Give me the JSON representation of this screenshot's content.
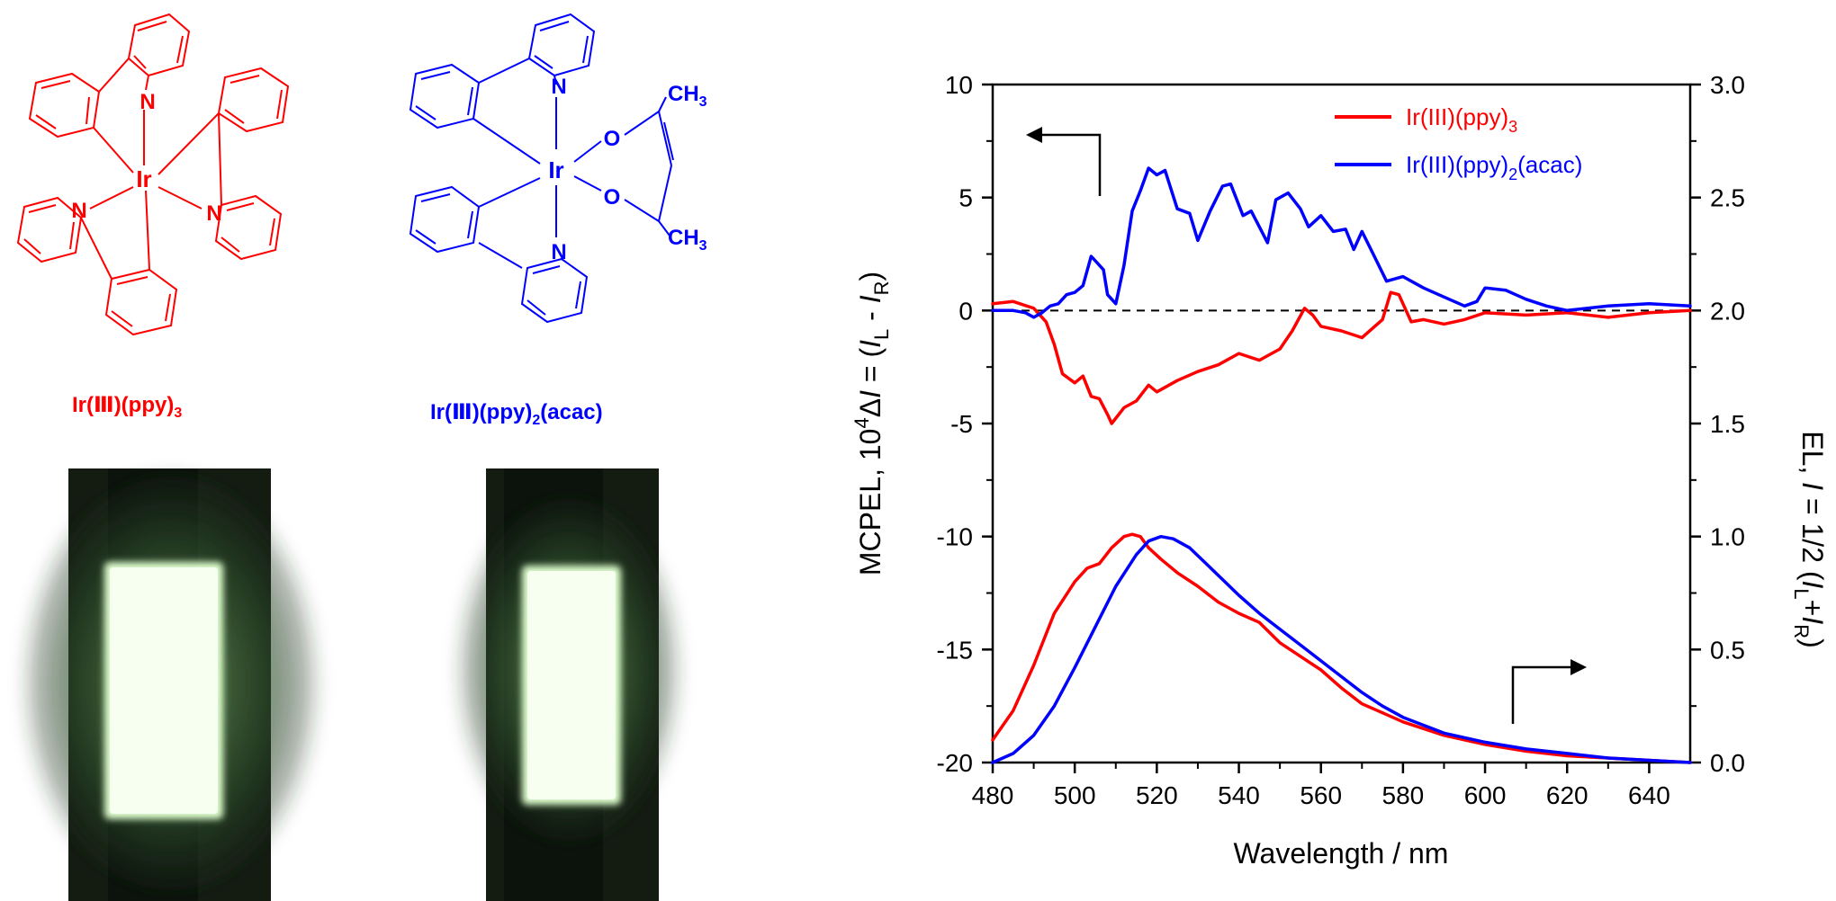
{
  "structures": {
    "complex1": {
      "caption": "Ir(Ⅲ)(ppy)",
      "caption_sub": "3",
      "color": "#ff0000",
      "atoms": {
        "metal": "Ir",
        "n1": "N",
        "n2": "N",
        "n3": "N"
      }
    },
    "complex2": {
      "caption": "Ir(Ⅲ)(ppy)",
      "caption_sub": "2",
      "caption_tail": "(acac)",
      "color": "#0000ff",
      "atoms": {
        "metal": "Ir",
        "n1": "N",
        "n2": "N",
        "o1": "O",
        "o2": "O",
        "ch3_top": "CH",
        "ch3_bottom": "CH",
        "ch3_sub": "3"
      }
    }
  },
  "photos": [
    {
      "name": "device-photo-ppy3",
      "glow": "#f6fff0"
    },
    {
      "name": "device-photo-ppy2acac",
      "glow": "#f6fff0"
    }
  ],
  "chart_data": {
    "type": "line",
    "xlabel": "Wavelength / nm",
    "ylabel_left": {
      "prefix": "MCPEL, 10",
      "sup": "4",
      "delta": "Δ",
      "I": "I",
      "eq": " = (",
      "IL": "I",
      "L": "L",
      "minus": " - ",
      "IR": "I",
      "R": "R",
      "close": ")"
    },
    "ylabel_right": {
      "prefix": "EL, ",
      "I": "I",
      "eq": " = 1/2 (",
      "IL": "I",
      "L": "L",
      "plus": "+",
      "IR": "I",
      "R": "R",
      "close": ")"
    },
    "xlim": [
      480,
      650
    ],
    "ylim_left": [
      -20,
      10
    ],
    "ylim_right": [
      0.0,
      3.0
    ],
    "xticks": [
      480,
      500,
      520,
      540,
      560,
      580,
      600,
      620,
      640
    ],
    "yticks_left": [
      -20,
      -15,
      -10,
      -5,
      0,
      5,
      10
    ],
    "yticks_left_labels": [
      "-20",
      "-15",
      "-10",
      "-5",
      "0",
      "5",
      "10"
    ],
    "yticks_right": [
      0.0,
      0.5,
      1.0,
      1.5,
      2.0,
      2.5,
      3.0
    ],
    "yticks_right_labels": [
      "0.0",
      "0.5",
      "1.0",
      "1.5",
      "2.0",
      "2.5",
      "3.0"
    ],
    "legend": {
      "position": "top-right",
      "entries": [
        {
          "text": "Ir(III)(ppy)",
          "sub": "3",
          "tail": "",
          "color": "#ff0000"
        },
        {
          "text": "Ir(III)(ppy)",
          "sub": "2",
          "tail": "(acac)",
          "color": "#0000ff"
        }
      ]
    },
    "zero_line": {
      "y": 0,
      "style": "dashed"
    },
    "series": [
      {
        "name": "Ir(III)(ppy)3",
        "axis": "left",
        "color": "#ff0000",
        "x": [
          480,
          485,
          490,
          493,
          495,
          497,
          500,
          502,
          504,
          506,
          508,
          509,
          512,
          515,
          518,
          520,
          525,
          530,
          535,
          540,
          545,
          550,
          553,
          556,
          558,
          560,
          565,
          570,
          575,
          577,
          579,
          582,
          585,
          590,
          595,
          600,
          610,
          620,
          630,
          640,
          650
        ],
        "y": [
          0.3,
          0.4,
          0.1,
          -0.5,
          -1.5,
          -2.8,
          -3.2,
          -2.9,
          -3.8,
          -3.9,
          -4.6,
          -5.0,
          -4.3,
          -4.0,
          -3.3,
          -3.6,
          -3.1,
          -2.7,
          -2.4,
          -1.9,
          -2.2,
          -1.7,
          -0.9,
          0.1,
          -0.2,
          -0.7,
          -0.9,
          -1.2,
          -0.4,
          0.8,
          0.7,
          -0.5,
          -0.4,
          -0.6,
          -0.4,
          -0.1,
          -0.2,
          -0.1,
          -0.3,
          -0.1,
          0.0
        ]
      },
      {
        "name": "Ir(III)(ppy)2(acac)",
        "axis": "left",
        "color": "#0000ff",
        "x": [
          480,
          485,
          488,
          490,
          492,
          494,
          496,
          498,
          500,
          502,
          504,
          505,
          507,
          508,
          510,
          512,
          514,
          516,
          518,
          520,
          522,
          525,
          528,
          530,
          533,
          536,
          538,
          541,
          543,
          547,
          549,
          552,
          555,
          557,
          560,
          563,
          566,
          568,
          570,
          573,
          576,
          580,
          585,
          590,
          595,
          598,
          600,
          605,
          610,
          615,
          620,
          630,
          640,
          650
        ],
        "y": [
          0.0,
          0.0,
          -0.1,
          -0.3,
          -0.1,
          0.2,
          0.3,
          0.7,
          0.8,
          1.1,
          2.4,
          2.2,
          1.8,
          0.7,
          0.3,
          2.0,
          4.4,
          5.3,
          6.3,
          6.0,
          6.2,
          4.5,
          4.3,
          3.1,
          4.4,
          5.5,
          5.6,
          4.2,
          4.4,
          3.0,
          4.9,
          5.2,
          4.5,
          3.7,
          4.2,
          3.5,
          3.6,
          2.7,
          3.5,
          2.4,
          1.3,
          1.5,
          1.0,
          0.6,
          0.2,
          0.4,
          1.0,
          0.9,
          0.5,
          0.2,
          0.0,
          0.2,
          0.3,
          0.2
        ]
      },
      {
        "name": "EL Ir(III)(ppy)3",
        "axis": "right",
        "color": "#ff0000",
        "x": [
          480,
          485,
          490,
          495,
          500,
          503,
          506,
          509,
          512,
          514,
          516,
          518,
          521,
          525,
          530,
          535,
          540,
          545,
          550,
          555,
          560,
          565,
          570,
          575,
          580,
          590,
          600,
          610,
          620,
          630,
          640,
          650
        ],
        "y": [
          0.1,
          0.23,
          0.43,
          0.66,
          0.8,
          0.86,
          0.88,
          0.95,
          1.0,
          1.01,
          1.0,
          0.95,
          0.9,
          0.84,
          0.78,
          0.71,
          0.66,
          0.62,
          0.53,
          0.47,
          0.41,
          0.33,
          0.26,
          0.22,
          0.18,
          0.12,
          0.08,
          0.05,
          0.03,
          0.02,
          0.01,
          0.0
        ]
      },
      {
        "name": "EL Ir(III)(ppy)2(acac)",
        "axis": "right",
        "color": "#0000ff",
        "x": [
          480,
          485,
          490,
          495,
          500,
          505,
          510,
          515,
          518,
          521,
          524,
          528,
          532,
          536,
          540,
          545,
          550,
          555,
          560,
          565,
          570,
          575,
          580,
          590,
          600,
          610,
          620,
          630,
          640,
          650
        ],
        "y": [
          0.0,
          0.04,
          0.12,
          0.25,
          0.42,
          0.6,
          0.78,
          0.92,
          0.98,
          1.0,
          0.99,
          0.95,
          0.88,
          0.81,
          0.74,
          0.66,
          0.59,
          0.52,
          0.45,
          0.38,
          0.31,
          0.25,
          0.2,
          0.13,
          0.09,
          0.06,
          0.04,
          0.02,
          0.01,
          0.0
        ]
      }
    ]
  }
}
